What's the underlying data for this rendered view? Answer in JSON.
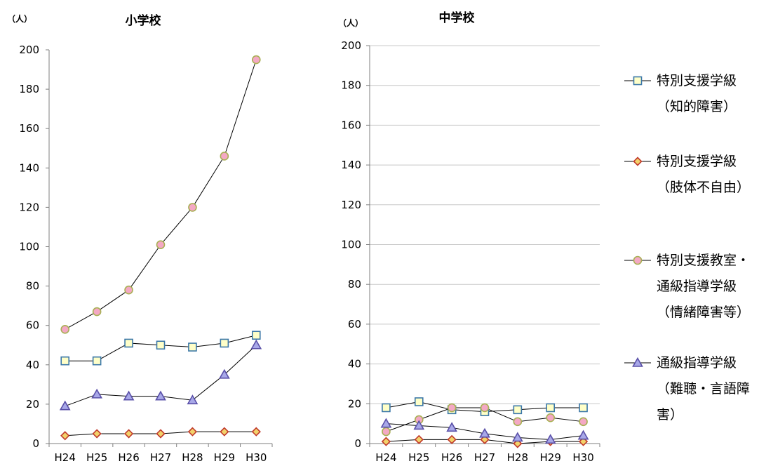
{
  "colors": {
    "gridline": "#c8c8c8",
    "axis": "#7f7f7f",
    "line": "#000000",
    "series": {
      "intellectual": {
        "fill": "#ffffc8",
        "stroke": "#3c78a8",
        "marker": "square"
      },
      "physical": {
        "fill": "#f2d26b",
        "stroke": "#c0392b",
        "marker": "diamond"
      },
      "special_room": {
        "fill": "#f4a8c4",
        "stroke": "#a8b054",
        "marker": "circle"
      },
      "hearing_speech": {
        "fill": "#a8a8e8",
        "stroke": "#5a50a8",
        "marker": "triangle"
      }
    }
  },
  "legend": {
    "items": [
      {
        "key": "intellectual",
        "label": "特別支援学級\n（知的障害）"
      },
      {
        "key": "physical",
        "label": "特別支援学級\n（肢体不自由）"
      },
      {
        "key": "special_room",
        "label": "特別支援教室・\n通級指導学級\n（情緒障害等）"
      },
      {
        "key": "hearing_speech",
        "label": "通級指導学級\n（難聴・言語障\n害）"
      }
    ]
  },
  "chart_data": [
    {
      "type": "line",
      "title": "小学校",
      "ylabel": "（人）",
      "categories": [
        "H24",
        "H25",
        "H26",
        "H27",
        "H28",
        "H29",
        "H30"
      ],
      "ylim": [
        0,
        200
      ],
      "yticks": [
        0,
        20,
        40,
        60,
        80,
        100,
        120,
        140,
        160,
        180,
        200
      ],
      "grid": false,
      "series": [
        {
          "key": "intellectual",
          "name": "特別支援学級（知的障害）",
          "values": [
            42,
            42,
            51,
            50,
            49,
            51,
            55
          ]
        },
        {
          "key": "physical",
          "name": "特別支援学級（肢体不自由）",
          "values": [
            4,
            5,
            5,
            5,
            6,
            6,
            6
          ]
        },
        {
          "key": "special_room",
          "name": "特別支援教室・通級指導学級（情緒障害等）",
          "values": [
            58,
            67,
            78,
            101,
            120,
            146,
            195
          ]
        },
        {
          "key": "hearing_speech",
          "name": "通級指導学級（難聴・言語障害）",
          "values": [
            19,
            25,
            24,
            24,
            22,
            35,
            50
          ]
        }
      ]
    },
    {
      "type": "line",
      "title": "中学校",
      "ylabel": "（人）",
      "categories": [
        "H24",
        "H25",
        "H26",
        "H27",
        "H28",
        "H29",
        "H30"
      ],
      "ylim": [
        0,
        200
      ],
      "yticks": [
        0,
        20,
        40,
        60,
        80,
        100,
        120,
        140,
        160,
        180,
        200
      ],
      "grid": true,
      "series": [
        {
          "key": "intellectual",
          "name": "特別支援学級（知的障害）",
          "values": [
            18,
            21,
            17,
            16,
            17,
            18,
            18
          ]
        },
        {
          "key": "physical",
          "name": "特別支援学級（肢体不自由）",
          "values": [
            1,
            2,
            2,
            2,
            0,
            1,
            1
          ]
        },
        {
          "key": "special_room",
          "name": "特別支援教室・通級指導学級（情緒障害等）",
          "values": [
            6,
            12,
            18,
            18,
            11,
            13,
            11
          ]
        },
        {
          "key": "hearing_speech",
          "name": "通級指導学級（難聴・言語障害）",
          "values": [
            10,
            9,
            8,
            5,
            3,
            2,
            4
          ]
        }
      ]
    }
  ]
}
